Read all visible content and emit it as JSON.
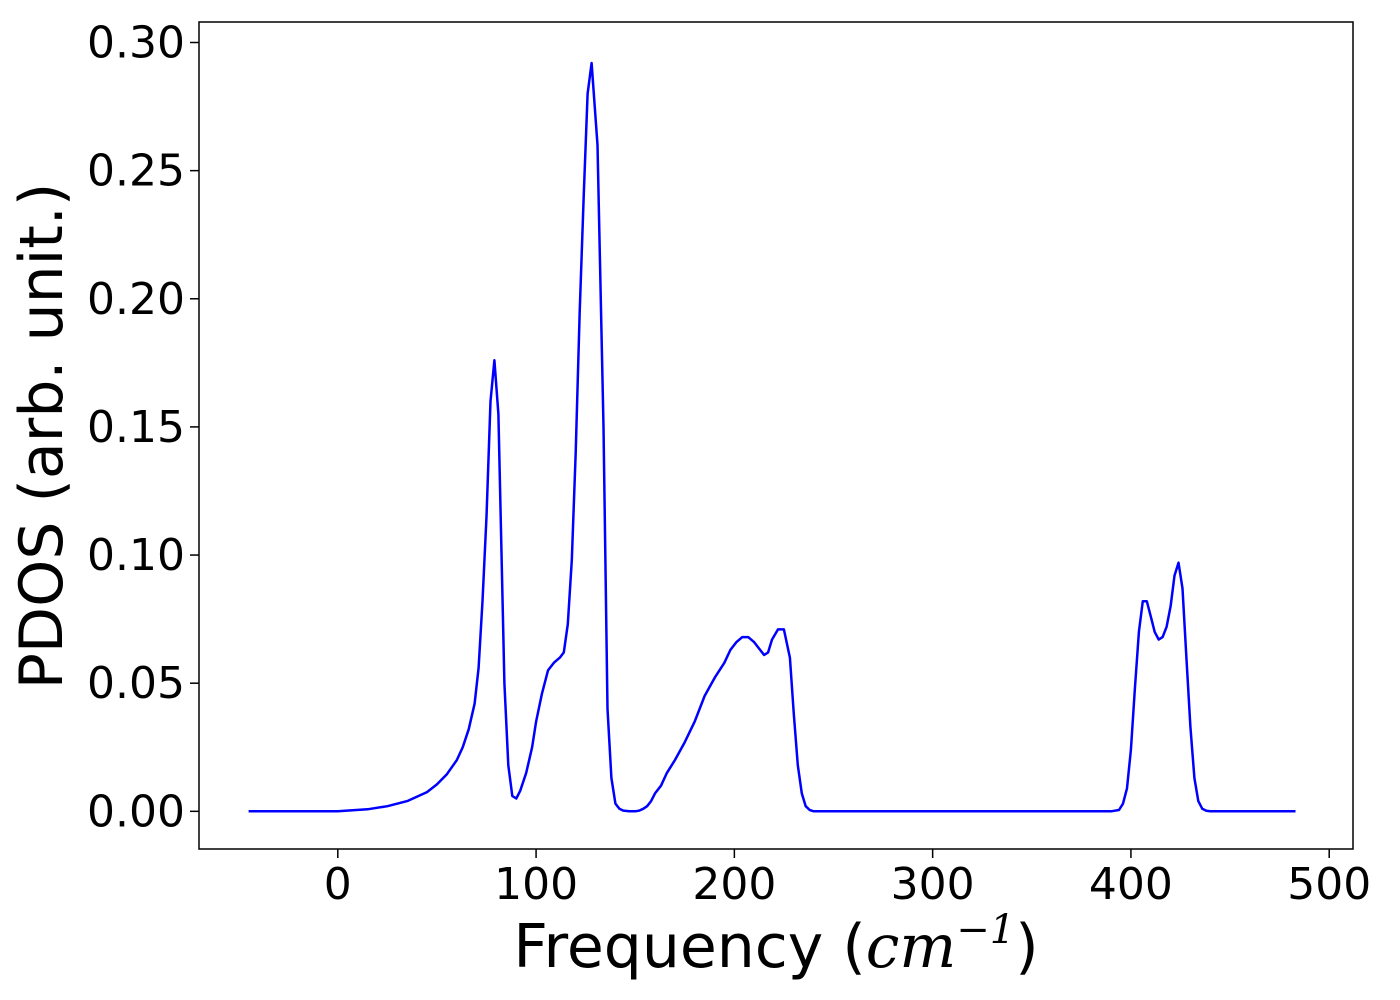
{
  "chart_data": {
    "type": "line",
    "title": "",
    "xlabel": "Frequency",
    "xlabel_unit_base": "cm",
    "xlabel_unit_exp": "−1",
    "ylabel": "PDOS (arb. unit.)",
    "xlim": [
      -70,
      512
    ],
    "ylim": [
      -0.0147,
      0.308
    ],
    "xticks": [
      0,
      100,
      200,
      300,
      400,
      500
    ],
    "xtick_labels": [
      "0",
      "100",
      "200",
      "300",
      "400",
      "500"
    ],
    "yticks": [
      0.0,
      0.05,
      0.1,
      0.15,
      0.2,
      0.25,
      0.3
    ],
    "ytick_labels": [
      "0.00",
      "0.05",
      "0.10",
      "0.15",
      "0.20",
      "0.25",
      "0.30"
    ],
    "grid": false,
    "legend": "none",
    "series": [
      {
        "color": "#0000ff",
        "x": [
          -45,
          -20,
          0,
          15,
          25,
          35,
          45,
          50,
          55,
          60,
          63,
          66,
          69,
          71,
          73,
          75,
          77,
          79,
          81,
          82,
          83,
          84,
          86,
          88,
          90,
          92,
          95,
          98,
          100,
          103,
          106,
          109,
          112,
          114,
          116,
          118,
          120,
          122,
          124,
          126,
          128,
          131,
          134,
          136,
          138,
          140,
          142,
          144,
          147,
          150,
          152,
          154,
          156,
          158,
          160,
          163,
          166,
          170,
          175,
          180,
          185,
          190,
          195,
          198,
          201,
          204,
          207,
          210,
          213,
          215,
          217,
          219,
          222,
          225,
          228,
          230,
          232,
          234,
          236,
          238,
          240,
          242,
          244,
          246,
          248,
          250,
          252,
          255,
          260,
          300,
          350,
          390,
          394,
          396,
          398,
          400,
          402,
          404,
          406,
          408,
          410,
          412,
          414,
          416,
          418,
          420,
          422,
          424,
          426,
          428,
          430,
          432,
          434,
          436,
          438,
          440,
          442,
          444,
          446,
          448,
          450,
          452,
          455,
          460,
          483
        ],
        "y": [
          0.0,
          0.0,
          0.0,
          0.0008,
          0.002,
          0.004,
          0.0075,
          0.0105,
          0.0145,
          0.02,
          0.025,
          0.032,
          0.042,
          0.056,
          0.082,
          0.115,
          0.16,
          0.176,
          0.155,
          0.12,
          0.085,
          0.05,
          0.018,
          0.006,
          0.005,
          0.008,
          0.015,
          0.025,
          0.035,
          0.046,
          0.055,
          0.058,
          0.06,
          0.062,
          0.073,
          0.098,
          0.14,
          0.195,
          0.24,
          0.28,
          0.292,
          0.26,
          0.15,
          0.04,
          0.013,
          0.003,
          0.001,
          0.0003,
          0.0,
          0.0,
          0.0003,
          0.001,
          0.002,
          0.004,
          0.007,
          0.01,
          0.015,
          0.02,
          0.027,
          0.035,
          0.045,
          0.052,
          0.058,
          0.063,
          0.066,
          0.068,
          0.068,
          0.066,
          0.063,
          0.061,
          0.062,
          0.067,
          0.071,
          0.071,
          0.06,
          0.038,
          0.018,
          0.007,
          0.002,
          0.0005,
          0.0,
          0.0,
          0.0,
          0.0,
          0.0,
          0.0,
          0.0,
          0.0,
          0.0,
          0.0,
          0.0,
          0.0,
          0.0005,
          0.003,
          0.009,
          0.024,
          0.048,
          0.07,
          0.082,
          0.082,
          0.076,
          0.07,
          0.067,
          0.068,
          0.072,
          0.08,
          0.092,
          0.097,
          0.087,
          0.06,
          0.033,
          0.013,
          0.004,
          0.001,
          0.0002,
          0.0,
          0.0,
          0.0,
          0.0,
          0.0,
          0.0,
          0.0,
          0.0,
          0.0,
          0.0
        ]
      }
    ]
  }
}
